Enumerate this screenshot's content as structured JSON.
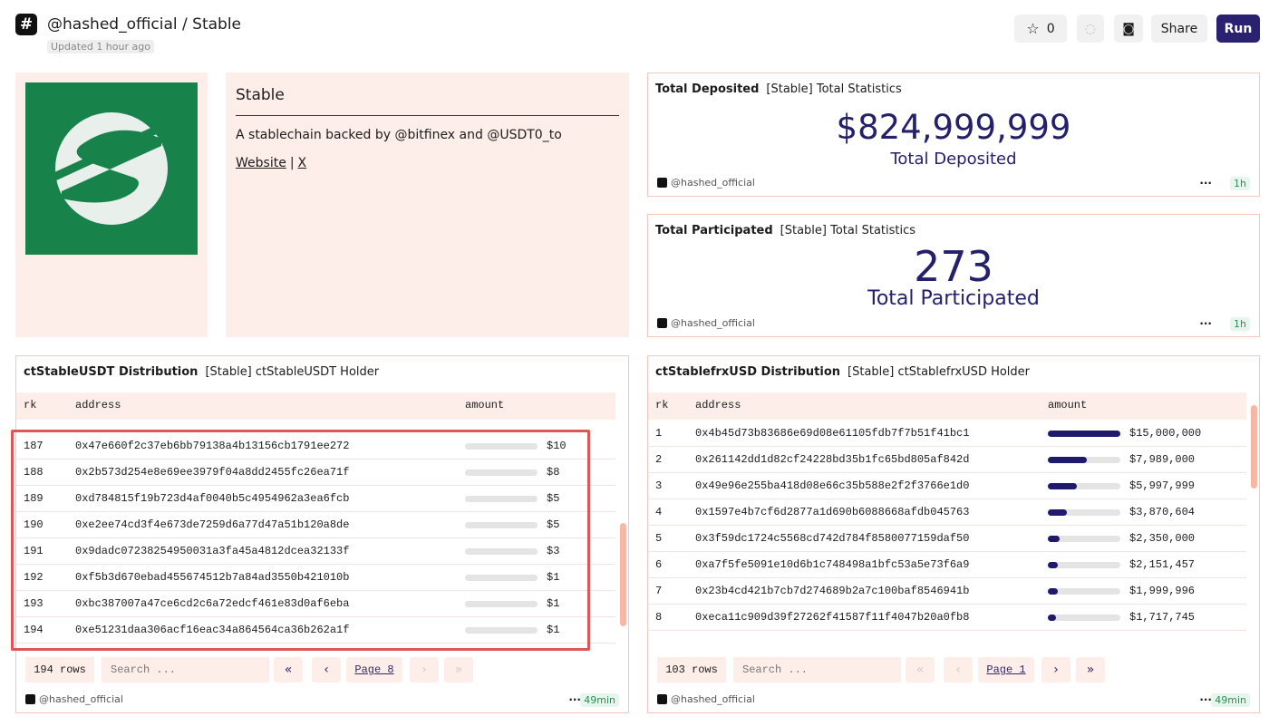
{
  "header": {
    "title": "@hashed_official / Stable",
    "updated": "Updated 1 hour ago",
    "star_count": 0,
    "share": "Share",
    "run": "Run"
  },
  "about": {
    "title": "Stable",
    "description": "A stablechain backed by @bitfinex and @USDT0_to",
    "link_website": "Website",
    "separator": "|",
    "link_x": "X"
  },
  "counters": [
    {
      "name": "Total Deposited",
      "query": "[Stable] Total Statistics",
      "value": "$824,999,999",
      "label": "Total Deposited",
      "owner": "@hashed_official",
      "age": "1h"
    },
    {
      "name": "Total Participated",
      "query": "[Stable] Total Statistics",
      "value": "273",
      "label": "Total Participated",
      "owner": "@hashed_official",
      "age": "1h"
    }
  ],
  "tables": [
    {
      "name": "ctStableUSDT Distribution",
      "query": "[Stable] ctStableUSDT Holder",
      "columns": [
        "rk",
        "address",
        "amount"
      ],
      "rows": [
        {
          "rk": 187,
          "address": "0x47e660f2c37eb6bb79138a4b13156cb1791ee272",
          "amount": 10,
          "amount_label": "$10"
        },
        {
          "rk": 188,
          "address": "0x2b573d254e8e69ee3979f04a8dd2455fc26ea71f",
          "amount": 8,
          "amount_label": "$8"
        },
        {
          "rk": 189,
          "address": "0xd784815f19b723d4af0040b5c4954962a3ea6fcb",
          "amount": 5,
          "amount_label": "$5"
        },
        {
          "rk": 190,
          "address": "0xe2ee74cd3f4e673de7259d6a77d47a51b120a8de",
          "amount": 5,
          "amount_label": "$5"
        },
        {
          "rk": 191,
          "address": "0x9dadc07238254950031a3fa45a4812dcea32133f",
          "amount": 3,
          "amount_label": "$3"
        },
        {
          "rk": 192,
          "address": "0xf5b3d670ebad455674512b7a84ad3550b421010b",
          "amount": 1,
          "amount_label": "$1"
        },
        {
          "rk": 193,
          "address": "0xbc387007a47ce6cd2c6a72edcf461e83d0af6eba",
          "amount": 1,
          "amount_label": "$1"
        },
        {
          "rk": 194,
          "address": "0xe51231daa306acf16eac34a864564ca36b262a1f",
          "amount": 1,
          "amount_label": "$1"
        }
      ],
      "row_count": "194 rows",
      "search": "Search ...",
      "page": "Page 8",
      "owner": "@hashed_official",
      "age": "49min"
    },
    {
      "name": "ctStablefrxUSD Distribution",
      "query": "[Stable] ctStablefrxUSD Holder",
      "columns": [
        "rk",
        "address",
        "amount"
      ],
      "rows": [
        {
          "rk": 1,
          "address": "0x4b45d73b83686e69d08e61105fdb7f7b51f41bc1",
          "amount": 15000000,
          "amount_label": "$15,000,000"
        },
        {
          "rk": 2,
          "address": "0x261142dd1d82cf24228bd35b1fc65bd805af842d",
          "amount": 7989000,
          "amount_label": "$7,989,000"
        },
        {
          "rk": 3,
          "address": "0x49e96e255ba418d08e66c35b588e2f2f3766e1d0",
          "amount": 5997999,
          "amount_label": "$5,997,999"
        },
        {
          "rk": 4,
          "address": "0x1597e4b7cf6d2877a1d690b6088668afdb045763",
          "amount": 3870604,
          "amount_label": "$3,870,604"
        },
        {
          "rk": 5,
          "address": "0x3f59dc1724c5568cd742d784f8580077159daf50",
          "amount": 2350000,
          "amount_label": "$2,350,000"
        },
        {
          "rk": 6,
          "address": "0xa7f5fe5091e10d6b1c748498a1bfc53a5e73f6a9",
          "amount": 2151457,
          "amount_label": "$2,151,457"
        },
        {
          "rk": 7,
          "address": "0x23b4cd421b7cb7d274689b2a7c100baf8546941b",
          "amount": 1999996,
          "amount_label": "$1,999,996"
        },
        {
          "rk": 8,
          "address": "0xeca11c909d39f27262f41587f11f4047b20a0fb8",
          "amount": 1717745,
          "amount_label": "$1,717,745"
        }
      ],
      "row_count": "103 rows",
      "search": "Search ...",
      "page": "Page 1",
      "owner": "@hashed_official",
      "age": "49min"
    }
  ]
}
